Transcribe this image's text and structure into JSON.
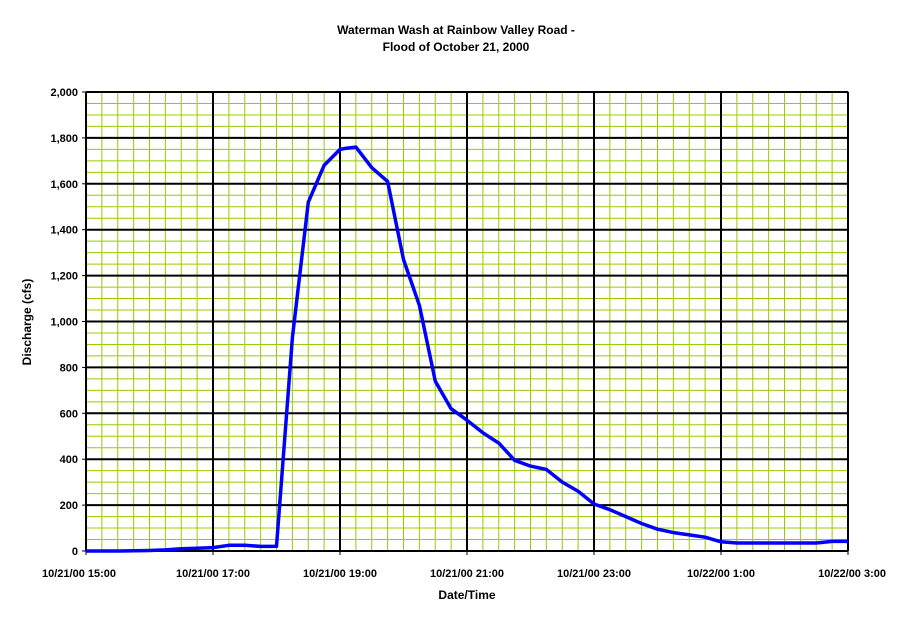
{
  "chart_data": {
    "type": "line",
    "title": [
      "Waterman Wash at Rainbow Valley Road -",
      "Flood of October 21, 2000"
    ],
    "xlabel": "Date/Time",
    "ylabel": "Discharge (cfs)",
    "x_unit": "hours",
    "xlim": [
      15,
      27
    ],
    "ylim": [
      0,
      2000
    ],
    "y_ticks": [
      0,
      200,
      400,
      600,
      800,
      1000,
      1200,
      1400,
      1600,
      1800,
      2000
    ],
    "y_tick_labels": [
      "0",
      "200",
      "400",
      "600",
      "800",
      "1,000",
      "1,200",
      "1,400",
      "1,600",
      "1,800",
      "2,000"
    ],
    "x_ticks": [
      15,
      17,
      19,
      21,
      23,
      25,
      27
    ],
    "x_tick_labels": [
      "10/21/00 15:00",
      "10/21/00 17:00",
      "10/21/00 19:00",
      "10/21/00 21:00",
      "10/21/00 23:00",
      "10/22/00 1:00",
      "10/22/00 3:00"
    ],
    "grid": {
      "major": true,
      "minor_vertical_step": 0.25,
      "minor_horizontal_step": 50
    },
    "colors": {
      "plot_bg": "#ffffff",
      "minor_grid": "#99cc00",
      "major_grid": "#000000",
      "series": "#0000ff"
    },
    "series": [
      {
        "name": "",
        "x": [
          15.0,
          15.5,
          16.0,
          16.25,
          16.5,
          16.75,
          17.0,
          17.25,
          17.5,
          17.75,
          18.0,
          18.25,
          18.5,
          18.75,
          19.0,
          19.1,
          19.25,
          19.5,
          19.75,
          20.0,
          20.25,
          20.5,
          20.75,
          21.0,
          21.25,
          21.5,
          21.75,
          22.0,
          22.25,
          22.5,
          22.75,
          23.0,
          23.25,
          23.5,
          23.75,
          24.0,
          24.25,
          24.5,
          24.75,
          25.0,
          25.25,
          25.5,
          25.75,
          26.0,
          26.25,
          26.5,
          26.75,
          27.0
        ],
        "values": [
          0,
          0,
          2,
          5,
          10,
          12,
          15,
          25,
          25,
          20,
          20,
          930,
          1520,
          1680,
          1750,
          1755,
          1760,
          1670,
          1610,
          1270,
          1070,
          740,
          620,
          570,
          515,
          470,
          395,
          370,
          355,
          300,
          260,
          205,
          180,
          150,
          120,
          95,
          80,
          70,
          60,
          40,
          35,
          35,
          35,
          35,
          35,
          35,
          42,
          42
        ]
      }
    ]
  }
}
